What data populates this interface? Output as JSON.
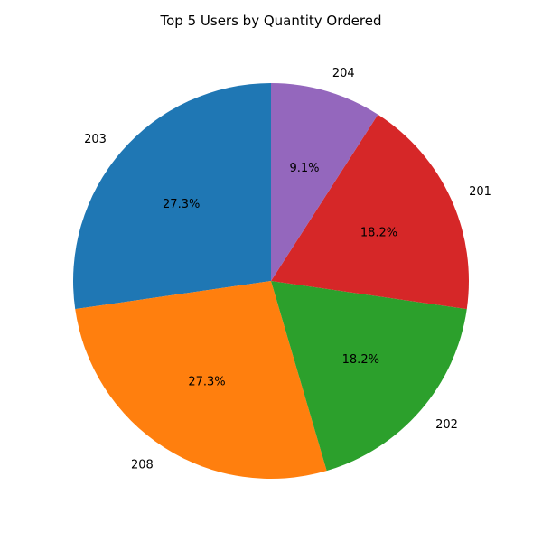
{
  "chart_data": {
    "type": "pie",
    "title": "Top 5 Users by Quantity Ordered",
    "slices": [
      {
        "label": "203",
        "value": 3,
        "percent_label": "27.3%",
        "color": "#1f77b4"
      },
      {
        "label": "208",
        "value": 3,
        "percent_label": "27.3%",
        "color": "#ff7f0e"
      },
      {
        "label": "202",
        "value": 2,
        "percent_label": "18.2%",
        "color": "#2ca02c"
      },
      {
        "label": "201",
        "value": 2,
        "percent_label": "18.2%",
        "color": "#d62728"
      },
      {
        "label": "204",
        "value": 1,
        "percent_label": "9.1%",
        "color": "#9467bd"
      }
    ],
    "start_angle_deg": 90,
    "direction": "counterclockwise"
  }
}
